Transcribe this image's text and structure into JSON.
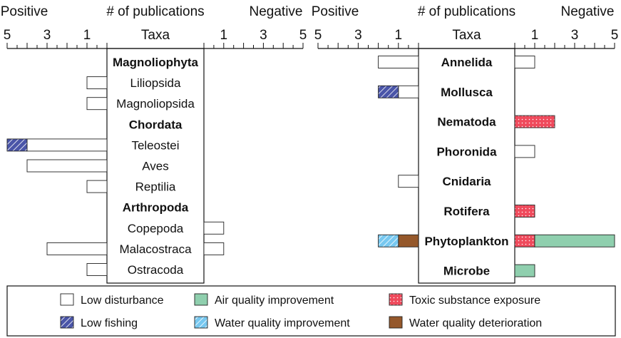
{
  "chart_data": {
    "type": "bar",
    "subtype": "diverging-horizontal-stacked",
    "panels": [
      {
        "header_left": "Positive",
        "header_center": "# of publications",
        "header_right": "Negative",
        "axis_title": "Taxa",
        "left_ticks": [
          "5",
          "3",
          "1"
        ],
        "right_ticks": [
          "1",
          "3",
          "5"
        ],
        "xlim_left": [
          0,
          5
        ],
        "xlim_right": [
          0,
          5
        ],
        "rows": [
          {
            "label": "Magnoliophyta",
            "bold": true,
            "positive": [],
            "negative": []
          },
          {
            "label": "Liliopsida",
            "bold": false,
            "positive": [
              {
                "cat": "low_disturbance",
                "value": 1
              }
            ],
            "negative": []
          },
          {
            "label": "Magnoliopsida",
            "bold": false,
            "positive": [
              {
                "cat": "low_disturbance",
                "value": 1
              }
            ],
            "negative": []
          },
          {
            "label": "Chordata",
            "bold": true,
            "positive": [],
            "negative": []
          },
          {
            "label": "Teleostei",
            "bold": false,
            "positive": [
              {
                "cat": "low_disturbance",
                "value": 4
              },
              {
                "cat": "low_fishing",
                "value": 1
              }
            ],
            "negative": []
          },
          {
            "label": "Aves",
            "bold": false,
            "positive": [
              {
                "cat": "low_disturbance",
                "value": 4
              }
            ],
            "negative": []
          },
          {
            "label": "Reptilia",
            "bold": false,
            "positive": [
              {
                "cat": "low_disturbance",
                "value": 1
              }
            ],
            "negative": []
          },
          {
            "label": "Arthropoda",
            "bold": true,
            "positive": [],
            "negative": []
          },
          {
            "label": "Copepoda",
            "bold": false,
            "positive": [],
            "negative": [
              {
                "cat": "low_disturbance",
                "value": 1
              }
            ]
          },
          {
            "label": "Malacostraca",
            "bold": false,
            "positive": [
              {
                "cat": "low_disturbance",
                "value": 3
              }
            ],
            "negative": [
              {
                "cat": "low_disturbance",
                "value": 1
              }
            ]
          },
          {
            "label": "Ostracoda",
            "bold": false,
            "positive": [
              {
                "cat": "low_disturbance",
                "value": 1
              }
            ],
            "negative": []
          }
        ]
      },
      {
        "header_left": "Positive",
        "header_center": "# of publications",
        "header_right": "Negative",
        "axis_title": "Taxa",
        "left_ticks": [
          "5",
          "3",
          "1"
        ],
        "right_ticks": [
          "1",
          "3",
          "5"
        ],
        "xlim_left": [
          0,
          5
        ],
        "xlim_right": [
          0,
          5
        ],
        "rows": [
          {
            "label": "Annelida",
            "bold": true,
            "positive": [
              {
                "cat": "low_disturbance",
                "value": 2
              }
            ],
            "negative": [
              {
                "cat": "low_disturbance",
                "value": 1
              }
            ]
          },
          {
            "label": "Mollusca",
            "bold": true,
            "positive": [
              {
                "cat": "low_disturbance",
                "value": 1
              },
              {
                "cat": "low_fishing",
                "value": 1
              }
            ],
            "negative": []
          },
          {
            "label": "Nematoda",
            "bold": true,
            "positive": [],
            "negative": [
              {
                "cat": "toxic_substance_exposure",
                "value": 2
              }
            ]
          },
          {
            "label": "Phoronida",
            "bold": true,
            "positive": [],
            "negative": [
              {
                "cat": "low_disturbance",
                "value": 1
              }
            ]
          },
          {
            "label": "Cnidaria",
            "bold": true,
            "positive": [
              {
                "cat": "low_disturbance",
                "value": 1
              }
            ],
            "negative": []
          },
          {
            "label": "Rotifera",
            "bold": true,
            "positive": [],
            "negative": [
              {
                "cat": "toxic_substance_exposure",
                "value": 1
              }
            ]
          },
          {
            "label": "Phytoplankton",
            "bold": true,
            "positive": [
              {
                "cat": "water_quality_deterioration",
                "value": 1
              },
              {
                "cat": "water_quality_improvement",
                "value": 1
              }
            ],
            "negative": [
              {
                "cat": "toxic_substance_exposure",
                "value": 1
              },
              {
                "cat": "air_quality_improvement",
                "value": 4
              }
            ]
          },
          {
            "label": "Microbe",
            "bold": true,
            "positive": [],
            "negative": [
              {
                "cat": "air_quality_improvement",
                "value": 1
              }
            ]
          }
        ]
      }
    ],
    "legend": [
      {
        "key": "low_disturbance",
        "label": "Low disturbance",
        "fill": "#ffffff",
        "pattern": "none"
      },
      {
        "key": "air_quality_improvement",
        "label": "Air quality improvement",
        "fill": "#8fcfae",
        "pattern": "none"
      },
      {
        "key": "toxic_substance_exposure",
        "label": "Toxic substance exposure",
        "fill": "#ef4a5c",
        "pattern": "dots"
      },
      {
        "key": "low_fishing",
        "label": "Low fishing",
        "fill": "#4a55a8",
        "pattern": "diagonal"
      },
      {
        "key": "water_quality_improvement",
        "label": "Water quality improvement",
        "fill": "#77c8f0",
        "pattern": "diagonal"
      },
      {
        "key": "water_quality_deterioration",
        "label": "Water quality deterioration",
        "fill": "#95582b",
        "pattern": "none"
      }
    ],
    "legend_position": "bottom",
    "grid": false
  }
}
